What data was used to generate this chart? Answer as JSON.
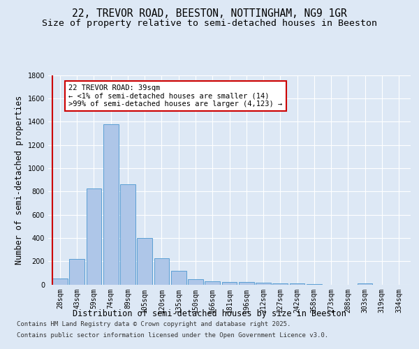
{
  "title_line1": "22, TREVOR ROAD, BEESTON, NOTTINGHAM, NG9 1GR",
  "title_line2": "Size of property relative to semi-detached houses in Beeston",
  "xlabel": "Distribution of semi-detached houses by size in Beeston",
  "ylabel": "Number of semi-detached properties",
  "categories": [
    "28sqm",
    "43sqm",
    "59sqm",
    "74sqm",
    "89sqm",
    "105sqm",
    "120sqm",
    "135sqm",
    "150sqm",
    "166sqm",
    "181sqm",
    "196sqm",
    "212sqm",
    "227sqm",
    "242sqm",
    "258sqm",
    "273sqm",
    "288sqm",
    "303sqm",
    "319sqm",
    "334sqm"
  ],
  "values": [
    50,
    220,
    825,
    1380,
    860,
    400,
    225,
    120,
    45,
    30,
    20,
    20,
    15,
    10,
    10,
    5,
    0,
    0,
    10,
    0,
    0
  ],
  "bar_color": "#aec6e8",
  "bar_edge_color": "#5a9fd4",
  "highlight_color": "#cc0000",
  "annotation_text": "22 TREVOR ROAD: 39sqm\n← <1% of semi-detached houses are smaller (14)\n>99% of semi-detached houses are larger (4,123) →",
  "annotation_box_color": "#ffffff",
  "annotation_box_edge": "#cc0000",
  "ylim": [
    0,
    1800
  ],
  "yticks": [
    0,
    200,
    400,
    600,
    800,
    1000,
    1200,
    1400,
    1600,
    1800
  ],
  "footer_line1": "Contains HM Land Registry data © Crown copyright and database right 2025.",
  "footer_line2": "Contains public sector information licensed under the Open Government Licence v3.0.",
  "bg_color": "#dde8f5",
  "plot_bg_color": "#dde8f5",
  "grid_color": "#ffffff",
  "title_fontsize": 10.5,
  "subtitle_fontsize": 9.5,
  "ylabel_fontsize": 8.5,
  "xlabel_fontsize": 8.5,
  "tick_fontsize": 7,
  "footer_fontsize": 6.5,
  "annot_fontsize": 7.5
}
